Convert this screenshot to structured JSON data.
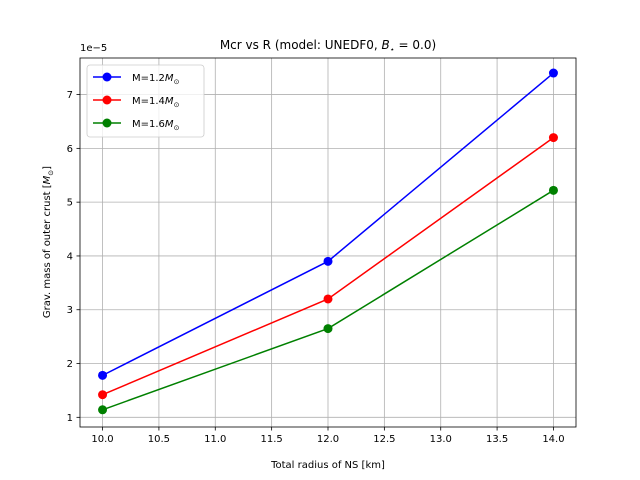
{
  "chart_data": {
    "type": "line",
    "title": "Mcr vs R (model: UNEDF0, B⋆ = 0.0)",
    "title_prefix": "Mcr vs R (model: UNEDF0, ",
    "title_var": "B",
    "title_sub": "⋆",
    "title_suffix": " = 0.0)",
    "xlabel": "Total radius of NS [km]",
    "ylabel": "Grav. mass of outer crust [M⊙]",
    "ylabel_main": "Grav. mass of outer crust [",
    "ylabel_var": "M",
    "ylabel_sub": "⊙",
    "ylabel_end": "]",
    "y_offset_label": "1e−5",
    "x": [
      10.0,
      12.0,
      14.0
    ],
    "xlim": [
      9.8,
      14.2
    ],
    "ylim": [
      0.82,
      7.68
    ],
    "x_ticks": [
      10.0,
      10.5,
      11.0,
      11.5,
      12.0,
      12.5,
      13.0,
      13.5,
      14.0
    ],
    "x_tick_labels": [
      "10.0",
      "10.5",
      "11.0",
      "11.5",
      "12.0",
      "12.5",
      "13.0",
      "13.5",
      "14.0"
    ],
    "y_ticks": [
      1,
      2,
      3,
      4,
      5,
      6,
      7
    ],
    "y_tick_labels": [
      "1",
      "2",
      "3",
      "4",
      "5",
      "6",
      "7"
    ],
    "grid": true,
    "legend_position": "top-left",
    "series": [
      {
        "name": "M=1.2M⊙",
        "prefix": "M=1.2",
        "var": "M",
        "sub": "⊙",
        "color": "#0000ff",
        "values": [
          1.78,
          3.9,
          7.4
        ]
      },
      {
        "name": "M=1.4M⊙",
        "prefix": "M=1.4",
        "var": "M",
        "sub": "⊙",
        "color": "#ff0000",
        "values": [
          1.42,
          3.2,
          6.2
        ]
      },
      {
        "name": "M=1.6M⊙",
        "prefix": "M=1.6",
        "var": "M",
        "sub": "⊙",
        "color": "#008000",
        "values": [
          1.14,
          2.65,
          5.22
        ]
      }
    ]
  }
}
